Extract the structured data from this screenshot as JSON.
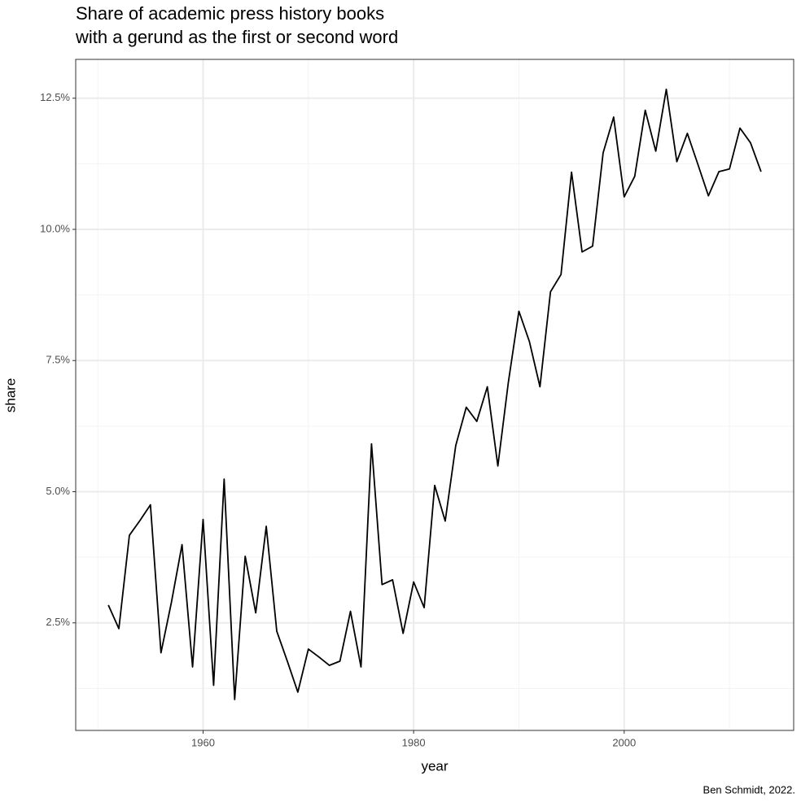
{
  "chart_data": {
    "type": "line",
    "title": [
      "Share of academic press history books",
      "with a gerund as the first or second word"
    ],
    "x_label": "year",
    "y_label": "share",
    "caption": "Ben Schmidt, 2022.",
    "x": [
      1951,
      1952,
      1953,
      1954,
      1955,
      1956,
      1957,
      1958,
      1959,
      1960,
      1961,
      1962,
      1963,
      1964,
      1965,
      1966,
      1967,
      1968,
      1969,
      1970,
      1971,
      1972,
      1973,
      1974,
      1975,
      1976,
      1977,
      1978,
      1979,
      1980,
      1981,
      1982,
      1983,
      1984,
      1985,
      1986,
      1987,
      1988,
      1989,
      1990,
      1991,
      1992,
      1993,
      1994,
      1995,
      1996,
      1997,
      1998,
      1999,
      2000,
      2001,
      2002,
      2003,
      2004,
      2005,
      2006,
      2007,
      2008,
      2009,
      2010,
      2011,
      2012,
      2013
    ],
    "series": [
      {
        "color": "#000000",
        "values": [
          2.84,
          2.39,
          4.17,
          4.45,
          4.75,
          1.93,
          2.9,
          3.99,
          1.66,
          4.47,
          1.31,
          5.24,
          1.04,
          3.77,
          2.69,
          4.34,
          2.34,
          1.77,
          1.18,
          2.0,
          1.85,
          1.69,
          1.77,
          2.72,
          1.66,
          5.91,
          3.23,
          3.32,
          2.3,
          3.28,
          2.79,
          5.12,
          4.44,
          5.88,
          6.61,
          6.34,
          7.0,
          5.49,
          7.09,
          8.44,
          7.86,
          7.0,
          8.81,
          9.14,
          11.09,
          9.57,
          9.68,
          11.46,
          12.14,
          10.62,
          11.01,
          12.27,
          11.49,
          12.67,
          11.29,
          11.83,
          11.24,
          10.64,
          11.1,
          11.15,
          11.93,
          11.65,
          11.1
        ]
      }
    ],
    "xlim": [
      1947.9,
      2016.1
    ],
    "xticks": [
      1960,
      1980,
      2000
    ],
    "ylim": [
      0.45,
      13.24
    ],
    "yticks": [
      {
        "value": 2.5,
        "label": "2.5%"
      },
      {
        "value": 5,
        "label": "5.0%"
      },
      {
        "value": 7.5,
        "label": "7.5%"
      },
      {
        "value": 10,
        "label": "10.0%"
      },
      {
        "value": 12.5,
        "label": "12.5%"
      }
    ],
    "grid": true
  }
}
